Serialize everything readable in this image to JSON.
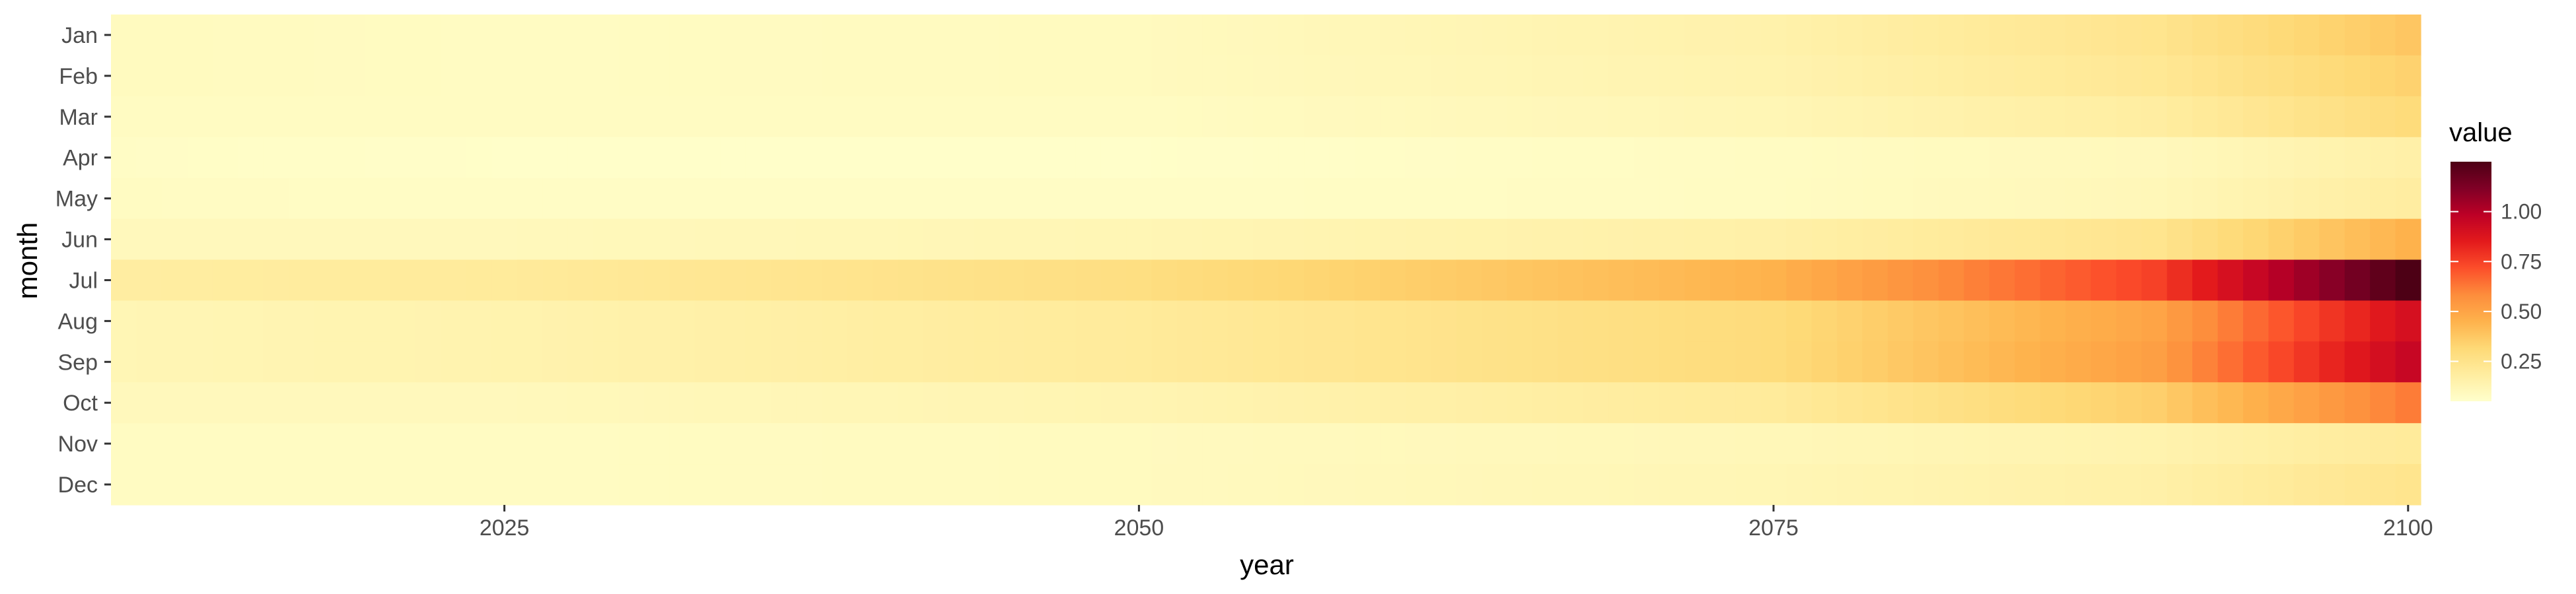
{
  "chart_data": {
    "type": "heatmap",
    "xlabel": "year",
    "ylabel": "month",
    "x_range": [
      2010,
      2100
    ],
    "x_ticks": [
      2025,
      2050,
      2075,
      2100
    ],
    "months": [
      "Jan",
      "Feb",
      "Mar",
      "Apr",
      "May",
      "Jun",
      "Jul",
      "Aug",
      "Sep",
      "Oct",
      "Nov",
      "Dec"
    ],
    "color_scale": {
      "title": "value",
      "range": [
        0.05,
        1.25
      ],
      "ticks": [
        0.25,
        0.5,
        0.75,
        1.0
      ],
      "tick_labels": [
        "0.25",
        "0.50",
        "0.75",
        "1.00"
      ],
      "palette": [
        "#ffffcc",
        "#ffeda0",
        "#fed976",
        "#feb24c",
        "#fd8d3c",
        "#fc4e2a",
        "#e31a1c",
        "#bd0026",
        "#800026",
        "#4d0015"
      ]
    },
    "grid": false,
    "legend_position": "right",
    "series": [
      {
        "name": "Jan",
        "key_years": [
          2010,
          2025,
          2050,
          2075,
          2090,
          2100
        ],
        "key_values": [
          0.09,
          0.08,
          0.09,
          0.15,
          0.24,
          0.38
        ]
      },
      {
        "name": "Feb",
        "key_years": [
          2010,
          2025,
          2050,
          2075,
          2090,
          2100
        ],
        "key_values": [
          0.09,
          0.08,
          0.09,
          0.14,
          0.22,
          0.34
        ]
      },
      {
        "name": "Mar",
        "key_years": [
          2010,
          2025,
          2050,
          2075,
          2090,
          2100
        ],
        "key_values": [
          0.08,
          0.08,
          0.08,
          0.12,
          0.18,
          0.3
        ]
      },
      {
        "name": "Apr",
        "key_years": [
          2010,
          2025,
          2050,
          2075,
          2090,
          2100
        ],
        "key_values": [
          0.07,
          0.06,
          0.06,
          0.08,
          0.1,
          0.16
        ]
      },
      {
        "name": "May",
        "key_years": [
          2010,
          2025,
          2050,
          2075,
          2090,
          2100
        ],
        "key_values": [
          0.08,
          0.07,
          0.07,
          0.08,
          0.11,
          0.18
        ]
      },
      {
        "name": "Jun",
        "key_years": [
          2010,
          2025,
          2050,
          2075,
          2090,
          2100
        ],
        "key_values": [
          0.1,
          0.1,
          0.12,
          0.16,
          0.24,
          0.45
        ]
      },
      {
        "name": "Jul",
        "key_years": [
          2010,
          2025,
          2050,
          2075,
          2090,
          2100
        ],
        "key_values": [
          0.18,
          0.2,
          0.28,
          0.45,
          0.75,
          1.25
        ]
      },
      {
        "name": "Aug",
        "key_years": [
          2010,
          2025,
          2050,
          2075,
          2090,
          2100
        ],
        "key_values": [
          0.12,
          0.14,
          0.2,
          0.3,
          0.5,
          0.9
        ]
      },
      {
        "name": "Sep",
        "key_years": [
          2010,
          2025,
          2050,
          2075,
          2090,
          2100
        ],
        "key_values": [
          0.12,
          0.14,
          0.2,
          0.3,
          0.52,
          0.95
        ]
      },
      {
        "name": "Oct",
        "key_years": [
          2010,
          2025,
          2050,
          2075,
          2090,
          2100
        ],
        "key_values": [
          0.1,
          0.1,
          0.13,
          0.2,
          0.35,
          0.62
        ]
      },
      {
        "name": "Nov",
        "key_years": [
          2010,
          2025,
          2050,
          2075,
          2090,
          2100
        ],
        "key_values": [
          0.08,
          0.08,
          0.09,
          0.11,
          0.14,
          0.2
        ]
      },
      {
        "name": "Dec",
        "key_years": [
          2010,
          2025,
          2050,
          2075,
          2090,
          2100
        ],
        "key_values": [
          0.08,
          0.08,
          0.09,
          0.12,
          0.16,
          0.24
        ]
      }
    ]
  }
}
